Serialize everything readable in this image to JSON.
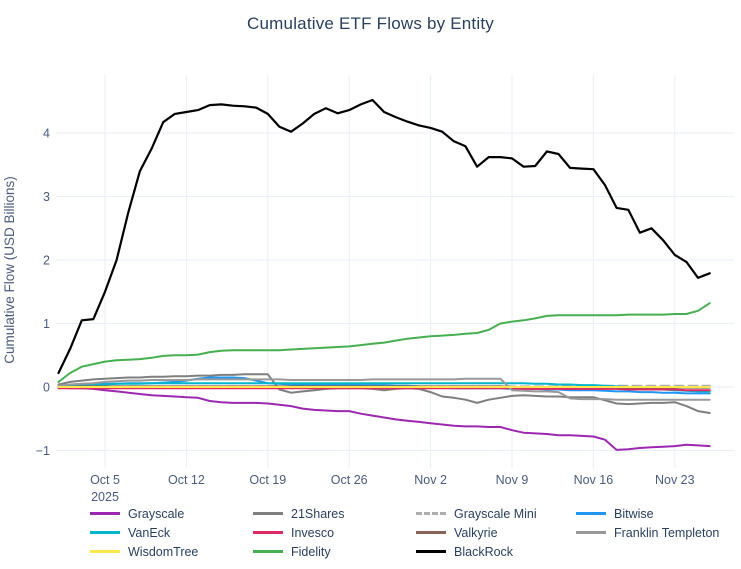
{
  "header": {
    "title": "Cumulative ETF Flows by Entity"
  },
  "colors": {
    "background": "#ffffff",
    "grid": "#e9eef8",
    "axis_text": "#4a5b7d",
    "title_text": "#2a3f5f",
    "legend_text": "#2a3f5f"
  },
  "chart_data": {
    "type": "line",
    "title": "Cumulative ETF Flows by Entity",
    "xlabel": "",
    "ylabel": "Cumulative Flow (USD Billions)",
    "x_unit": "days, daily points from Oct 1 2025 to Nov 26 2025",
    "x_ticks": [
      {
        "day": 4,
        "label": "Oct 5",
        "sublabel": "2025"
      },
      {
        "day": 11,
        "label": "Oct 12"
      },
      {
        "day": 18,
        "label": "Oct 19"
      },
      {
        "day": 25,
        "label": "Oct 26"
      },
      {
        "day": 32,
        "label": "Nov 2"
      },
      {
        "day": 39,
        "label": "Nov 9"
      },
      {
        "day": 46,
        "label": "Nov 16"
      },
      {
        "day": 53,
        "label": "Nov 23"
      }
    ],
    "y_ticks": [
      -1,
      0,
      1,
      2,
      3,
      4
    ],
    "ylim": [
      -1.25,
      4.95
    ],
    "grid": true,
    "legend_position": "bottom",
    "series": [
      {
        "name": "Grayscale",
        "color": "#9c27b0",
        "dash": false,
        "values": [
          -0.01,
          -0.02,
          -0.02,
          -0.03,
          -0.05,
          -0.07,
          -0.09,
          -0.11,
          -0.13,
          -0.14,
          -0.15,
          -0.16,
          -0.17,
          -0.22,
          -0.24,
          -0.25,
          -0.25,
          -0.25,
          -0.26,
          -0.28,
          -0.3,
          -0.34,
          -0.36,
          -0.37,
          -0.38,
          -0.38,
          -0.42,
          -0.45,
          -0.48,
          -0.51,
          -0.53,
          -0.55,
          -0.57,
          -0.59,
          -0.61,
          -0.62,
          -0.62,
          -0.63,
          -0.63,
          -0.68,
          -0.72,
          -0.73,
          -0.74,
          -0.76,
          -0.76,
          -0.77,
          -0.78,
          -0.83,
          -0.99,
          -0.98,
          -0.96,
          -0.95,
          -0.94,
          -0.93,
          -0.91,
          -0.92,
          -0.93
        ]
      },
      {
        "name": "21Shares",
        "color": "#7f7f7f",
        "dash": false,
        "values": [
          0.04,
          0.08,
          0.1,
          0.12,
          0.13,
          0.14,
          0.15,
          0.15,
          0.16,
          0.16,
          0.17,
          0.17,
          0.18,
          0.18,
          0.19,
          0.19,
          0.2,
          0.2,
          0.2,
          -0.04,
          -0.09,
          -0.07,
          -0.05,
          -0.03,
          -0.02,
          -0.02,
          -0.02,
          -0.03,
          -0.05,
          -0.03,
          -0.02,
          -0.03,
          -0.08,
          -0.15,
          -0.17,
          -0.2,
          -0.25,
          -0.2,
          -0.17,
          -0.14,
          -0.13,
          -0.14,
          -0.15,
          -0.15,
          -0.16,
          -0.16,
          -0.16,
          -0.21,
          -0.26,
          -0.27,
          -0.26,
          -0.25,
          -0.25,
          -0.24,
          -0.3,
          -0.38,
          -0.41
        ]
      },
      {
        "name": "Grayscale Mini",
        "color": "#adadad",
        "dash": true,
        "values": [
          0.0,
          0.0,
          0.01,
          0.01,
          0.01,
          0.01,
          0.01,
          0.01,
          0.01,
          0.01,
          0.01,
          0.01,
          0.01,
          0.01,
          0.01,
          0.01,
          0.01,
          0.01,
          0.01,
          0.01,
          0.01,
          0.01,
          0.01,
          0.01,
          0.01,
          0.01,
          0.01,
          0.01,
          0.01,
          0.01,
          0.01,
          0.01,
          0.01,
          0.01,
          0.01,
          0.01,
          0.01,
          0.01,
          0.01,
          0.01,
          0.01,
          0.01,
          0.01,
          0.01,
          0.01,
          0.01,
          0.02,
          0.02,
          0.02,
          0.02,
          0.02,
          0.02,
          0.02,
          0.02,
          0.02,
          0.02,
          0.02
        ]
      },
      {
        "name": "Bitwise",
        "color": "#2196f3",
        "dash": false,
        "values": [
          0.02,
          0.03,
          0.03,
          0.04,
          0.05,
          0.05,
          0.06,
          0.06,
          0.06,
          0.07,
          0.08,
          0.1,
          0.13,
          0.15,
          0.15,
          0.15,
          0.14,
          0.1,
          0.06,
          0.05,
          0.04,
          0.04,
          0.04,
          0.04,
          0.04,
          0.04,
          0.03,
          0.03,
          0.03,
          0.02,
          0.02,
          0.01,
          0.0,
          -0.01,
          -0.02,
          -0.02,
          -0.02,
          -0.02,
          -0.02,
          -0.03,
          -0.03,
          -0.03,
          -0.04,
          -0.04,
          -0.05,
          -0.05,
          -0.05,
          -0.06,
          -0.07,
          -0.07,
          -0.08,
          -0.08,
          -0.09,
          -0.09,
          -0.1,
          -0.1,
          -0.1
        ]
      },
      {
        "name": "VanEck",
        "color": "#00b5cc",
        "dash": false,
        "values": [
          0.01,
          0.02,
          0.03,
          0.04,
          0.04,
          0.05,
          0.05,
          0.05,
          0.06,
          0.06,
          0.06,
          0.06,
          0.06,
          0.06,
          0.06,
          0.06,
          0.06,
          0.06,
          0.06,
          0.06,
          0.06,
          0.06,
          0.06,
          0.06,
          0.06,
          0.06,
          0.06,
          0.06,
          0.06,
          0.06,
          0.06,
          0.06,
          0.06,
          0.06,
          0.06,
          0.06,
          0.06,
          0.06,
          0.06,
          0.06,
          0.06,
          0.05,
          0.05,
          0.04,
          0.04,
          0.03,
          0.03,
          0.02,
          0.01,
          0.0,
          -0.02,
          -0.03,
          -0.04,
          -0.05,
          -0.06,
          -0.07,
          -0.07
        ]
      },
      {
        "name": "Invesco",
        "color": "#e02865",
        "dash": false,
        "values": [
          -0.02,
          -0.02,
          -0.02,
          -0.02,
          -0.02,
          -0.02,
          -0.02,
          -0.02,
          -0.02,
          -0.02,
          -0.02,
          -0.02,
          -0.02,
          -0.02,
          -0.02,
          -0.02,
          -0.02,
          -0.02,
          -0.02,
          -0.02,
          -0.02,
          -0.02,
          -0.02,
          -0.02,
          -0.02,
          -0.02,
          -0.02,
          -0.02,
          -0.02,
          -0.02,
          -0.02,
          -0.02,
          -0.02,
          -0.02,
          -0.02,
          -0.02,
          -0.02,
          -0.02,
          -0.02,
          -0.02,
          -0.03,
          -0.03,
          -0.03,
          -0.03,
          -0.03,
          -0.03,
          -0.03,
          -0.03,
          -0.03,
          -0.04,
          -0.04,
          -0.04,
          -0.04,
          -0.04,
          -0.05,
          -0.05,
          -0.05
        ]
      },
      {
        "name": "Valkyrie",
        "color": "#8a6256",
        "dash": false,
        "values": [
          0.0,
          0.0,
          0.01,
          0.01,
          0.01,
          0.01,
          0.01,
          0.01,
          0.01,
          0.01,
          0.01,
          0.01,
          0.01,
          0.01,
          0.01,
          0.01,
          0.01,
          0.01,
          0.01,
          0.01,
          0.01,
          0.01,
          0.01,
          0.01,
          0.01,
          0.01,
          0.01,
          0.01,
          0.01,
          0.01,
          0.01,
          0.01,
          0.01,
          0.01,
          0.01,
          0.01,
          0.01,
          0.01,
          0.01,
          0.0,
          0.0,
          0.0,
          0.0,
          0.0,
          0.0,
          0.0,
          0.0,
          0.0,
          -0.01,
          -0.01,
          -0.01,
          -0.01,
          -0.01,
          -0.01,
          -0.01,
          -0.01,
          -0.01
        ]
      },
      {
        "name": "Franklin Templeton",
        "color": "#999999",
        "dash": false,
        "values": [
          0.02,
          0.04,
          0.05,
          0.06,
          0.08,
          0.09,
          0.1,
          0.1,
          0.11,
          0.11,
          0.11,
          0.11,
          0.12,
          0.12,
          0.12,
          0.12,
          0.12,
          0.12,
          0.12,
          0.12,
          0.11,
          0.11,
          0.11,
          0.11,
          0.11,
          0.11,
          0.11,
          0.12,
          0.12,
          0.12,
          0.12,
          0.12,
          0.12,
          0.12,
          0.12,
          0.13,
          0.13,
          0.13,
          0.13,
          -0.05,
          -0.06,
          -0.07,
          -0.07,
          -0.08,
          -0.18,
          -0.19,
          -0.19,
          -0.19,
          -0.2,
          -0.2,
          -0.2,
          -0.2,
          -0.2,
          -0.2,
          -0.2,
          -0.2,
          -0.2
        ]
      },
      {
        "name": "WisdomTree",
        "color": "#ffe74c",
        "dash": false,
        "values": [
          0.0,
          0.0,
          0.0,
          0.0,
          0.0,
          0.0,
          0.0,
          0.0,
          0.0,
          0.0,
          0.0,
          0.0,
          0.0,
          0.0,
          0.0,
          0.0,
          0.0,
          0.0,
          0.0,
          0.0,
          0.0,
          0.0,
          0.0,
          0.0,
          0.0,
          0.0,
          0.0,
          0.0,
          0.0,
          0.0,
          0.0,
          0.0,
          0.0,
          0.0,
          0.0,
          0.0,
          0.0,
          0.0,
          0.0,
          0.0,
          0.0,
          0.0,
          0.0,
          0.0,
          0.0,
          0.0,
          0.0,
          0.0,
          0.0,
          0.0,
          0.0,
          0.0,
          0.0,
          0.0,
          0.0,
          0.0,
          0.0
        ]
      },
      {
        "name": "Fidelity",
        "color": "#46b050",
        "dash": false,
        "values": [
          0.08,
          0.22,
          0.32,
          0.36,
          0.4,
          0.42,
          0.43,
          0.44,
          0.46,
          0.49,
          0.5,
          0.5,
          0.51,
          0.55,
          0.57,
          0.58,
          0.58,
          0.58,
          0.58,
          0.58,
          0.59,
          0.6,
          0.61,
          0.62,
          0.63,
          0.64,
          0.66,
          0.68,
          0.7,
          0.73,
          0.76,
          0.78,
          0.8,
          0.81,
          0.82,
          0.84,
          0.85,
          0.9,
          1.0,
          1.03,
          1.05,
          1.08,
          1.12,
          1.13,
          1.13,
          1.13,
          1.13,
          1.13,
          1.13,
          1.14,
          1.14,
          1.14,
          1.14,
          1.15,
          1.15,
          1.2,
          1.32
        ]
      },
      {
        "name": "BlackRock",
        "color": "#000000",
        "dash": false,
        "values": [
          0.22,
          0.6,
          1.05,
          1.07,
          1.5,
          2.0,
          2.75,
          3.4,
          3.75,
          4.17,
          4.3,
          4.33,
          4.36,
          4.44,
          4.45,
          4.43,
          4.42,
          4.4,
          4.3,
          4.1,
          4.02,
          4.15,
          4.3,
          4.39,
          4.31,
          4.36,
          4.45,
          4.52,
          4.33,
          4.25,
          4.18,
          4.12,
          4.08,
          4.02,
          3.87,
          3.79,
          3.47,
          3.62,
          3.62,
          3.6,
          3.47,
          3.48,
          3.71,
          3.67,
          3.45,
          3.44,
          3.43,
          3.18,
          2.82,
          2.79,
          2.43,
          2.5,
          2.31,
          2.08,
          1.97,
          1.72,
          1.79
        ]
      }
    ]
  }
}
